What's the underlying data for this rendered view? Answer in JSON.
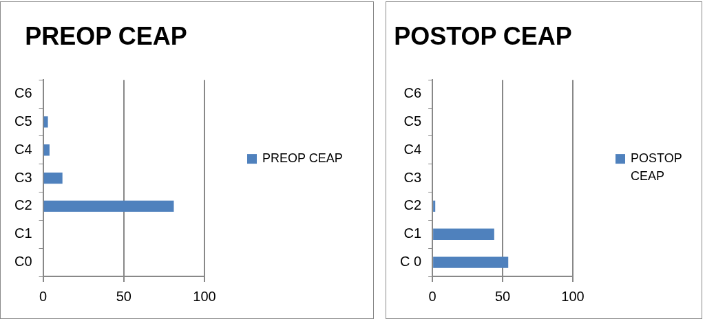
{
  "chart_data": [
    {
      "type": "bar",
      "title": "PREOP CEAP",
      "orientation": "horizontal",
      "categories": [
        "C6",
        "C5",
        "C4",
        "C3",
        "C2",
        "C1",
        "C0"
      ],
      "series": [
        {
          "name": "PREOP CEAP",
          "color": "#4f81bd",
          "values": [
            0,
            3,
            4,
            12,
            81,
            0,
            0
          ]
        }
      ],
      "xlim": [
        0,
        100
      ],
      "xticks": [
        0,
        50,
        100
      ],
      "grid": "x",
      "legend": "right"
    },
    {
      "type": "bar",
      "title": "POSTOP CEAP",
      "orientation": "horizontal",
      "categories": [
        "C6",
        "C5",
        "C4",
        "C3",
        "C2",
        "C1",
        "C 0"
      ],
      "series": [
        {
          "name": "POSTOP CEAP",
          "color": "#4f81bd",
          "values": [
            0,
            0,
            0,
            0,
            2,
            44,
            54
          ]
        }
      ],
      "xlim": [
        0,
        100
      ],
      "xticks": [
        0,
        50,
        100
      ],
      "grid": "x",
      "legend": "right"
    }
  ]
}
